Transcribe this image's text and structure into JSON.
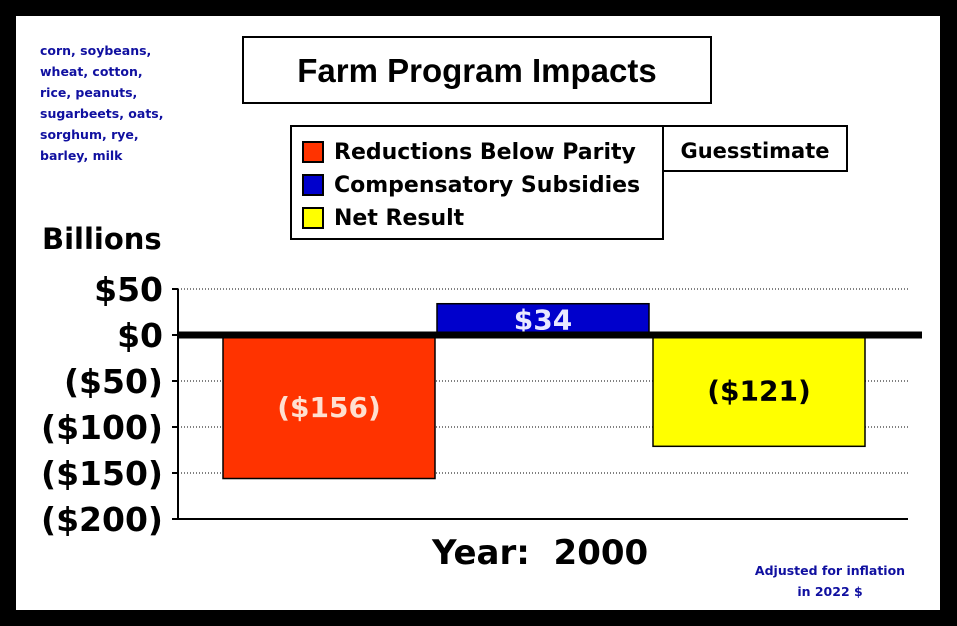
{
  "header": {
    "title": "Farm Program Impacts",
    "crops_lines": [
      "corn, soybeans,",
      "wheat, cotton,",
      "rice, peanuts,",
      "sugarbeets, oats,",
      "sorghum, rye,",
      "barley, milk"
    ],
    "guess_label": "Guesstimate",
    "note_lines": [
      "Adjusted for inflation",
      "in 2022 $"
    ]
  },
  "chart_data": {
    "type": "bar",
    "title": "Farm Program Impacts",
    "ylabel": "Billions",
    "xlabel": "Year:  2000",
    "ylim": [
      -200,
      50
    ],
    "yticks": [
      50,
      0,
      -50,
      -100,
      -150,
      -200
    ],
    "ytick_labels": [
      "$50",
      "$0",
      "($50)",
      "($100)",
      "($150)",
      "($200)"
    ],
    "grid": true,
    "legend": "top-center",
    "series": [
      {
        "name": "Reductions Below Parity",
        "value": -156,
        "label": "($156)",
        "color": "#ff3300",
        "label_color": "#ffe0d0"
      },
      {
        "name": "Compensatory Subsidies",
        "value": 34,
        "label": "$34",
        "color": "#0000cc",
        "label_color": "#e8e8ff"
      },
      {
        "name": "Net Result",
        "value": -121,
        "label": "($121)",
        "color": "#ffff00",
        "label_color": "#000000"
      }
    ]
  }
}
